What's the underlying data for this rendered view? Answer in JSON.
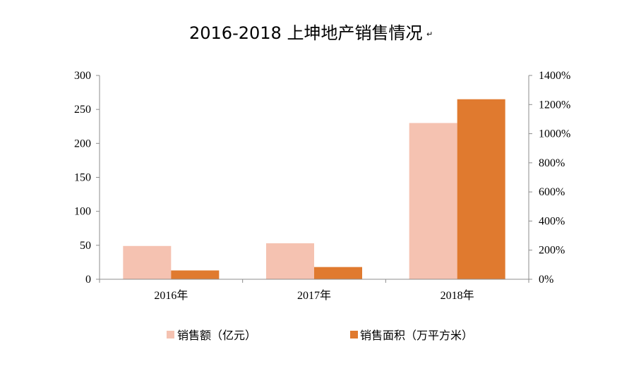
{
  "chart_data": {
    "type": "bar",
    "title": "2016-2018  上坤地产销售情况",
    "title_mark": "↵",
    "categories": [
      "2016年",
      "2017年",
      "2018年"
    ],
    "series": [
      {
        "name": "销售额（亿元）",
        "axis": "left",
        "color": "#F5C2B1",
        "values": [
          49,
          53,
          230
        ]
      },
      {
        "name": "销售面积（万平方米）",
        "axis": "left",
        "color": "#E07A2F",
        "values": [
          13,
          18,
          265
        ]
      }
    ],
    "y_left": {
      "min": 0,
      "max": 300,
      "ticks": [
        "0",
        "50",
        "100",
        "150",
        "200",
        "250",
        "300"
      ]
    },
    "y_right": {
      "min": 0,
      "max": 1400,
      "ticks": [
        "0%",
        "200%",
        "400%",
        "600%",
        "800%",
        "1000%",
        "1200%",
        "1400%"
      ]
    },
    "grid": false,
    "legend_position": "bottom"
  }
}
